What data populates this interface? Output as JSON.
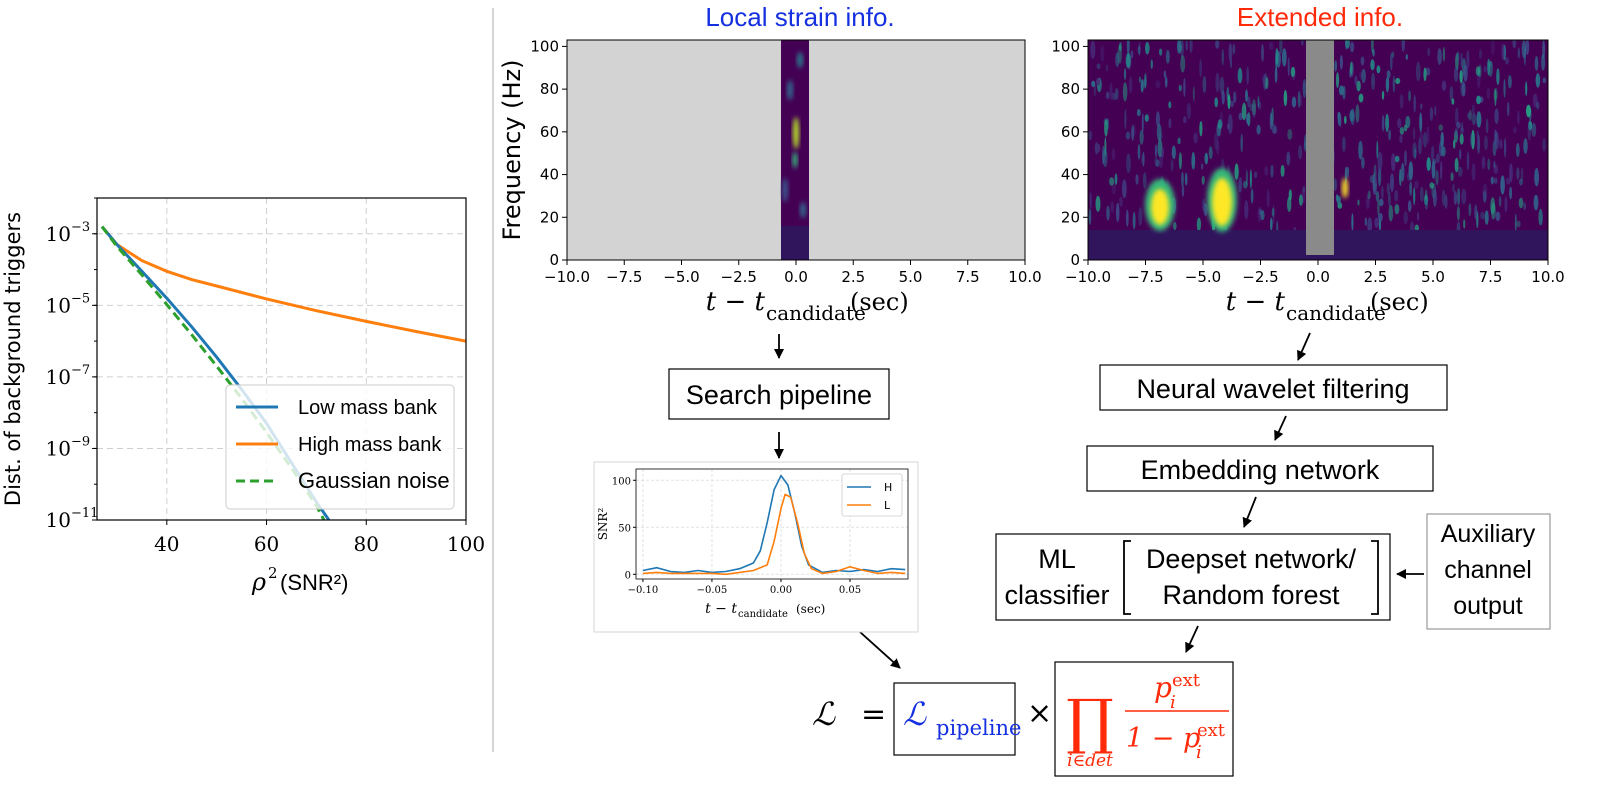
{
  "colors": {
    "low_mass": "#1f77b4",
    "high_mass": "#ff7f0e",
    "gaussian": "#2ca02c",
    "local_title": "#1530e0",
    "extended_title": "#ff2a0a",
    "red_box": "#ff2a0a",
    "blue_text": "#1530e0"
  },
  "titles": {
    "local": "Local strain info.",
    "extended": "Extended info."
  },
  "boxes": {
    "search_pipeline": "Search pipeline",
    "neural_wavelet": "Neural wavelet filtering",
    "embedding": "Embedding network",
    "ml_1": "ML",
    "ml_2": "classifier",
    "deepset": "Deepset network/",
    "random_forest": "Random forest",
    "aux_1": "Auxiliary",
    "aux_2": "channel",
    "aux_3": "output"
  },
  "formula": {
    "lhs": "ℒ",
    "equals": "=",
    "pipeline_symbol": "ℒ",
    "pipeline_sub": "pipeline",
    "times": "×",
    "prod": "∏",
    "prod_sub": "i∈det",
    "num_p": "p",
    "num_sub": "i",
    "num_sup": "ext",
    "den_prefix": "1 − p",
    "den_sub": "i",
    "den_sup": "ext"
  },
  "spec_axes": {
    "ylabel": "Frequency (Hz)",
    "xlabel_main": "t − t",
    "xlabel_sub": "candidate",
    "xlabel_unit": "(sec)",
    "xticks": [
      "−10.0",
      "−7.5",
      "−5.0",
      "−2.5",
      "0.0",
      "2.5",
      "5.0",
      "7.5",
      "10.0"
    ],
    "yticks": [
      "0",
      "20",
      "40",
      "60",
      "80",
      "100"
    ]
  },
  "chart_data": [
    {
      "type": "line",
      "xlabel": "ρ² (SNR²)",
      "ylabel": "Dist. of background triggers",
      "xlim": [
        26,
        100
      ],
      "ylim_log10": [
        -11,
        -2
      ],
      "yscale": "log",
      "grid": true,
      "legend_position": "bottom-right",
      "xticks": [
        "40",
        "60",
        "80",
        "100"
      ],
      "yticks": [
        {
          "base": "10",
          "exp": "−3",
          "log": -3
        },
        {
          "base": "10",
          "exp": "−5",
          "log": -5
        },
        {
          "base": "10",
          "exp": "−7",
          "log": -7
        },
        {
          "base": "10",
          "exp": "−9",
          "log": -9
        },
        {
          "base": "10",
          "exp": "−11",
          "log": -11
        }
      ],
      "series": [
        {
          "name": "Low mass bank",
          "style": "solid",
          "x": [
            27,
            30,
            35,
            40,
            45,
            50,
            55,
            60,
            65,
            70,
            72.5
          ],
          "log10_y": [
            -2.8,
            -3.3,
            -4.05,
            -4.8,
            -5.6,
            -6.45,
            -7.35,
            -8.3,
            -9.4,
            -10.5,
            -11
          ]
        },
        {
          "name": "High mass bank",
          "style": "solid",
          "x": [
            27,
            30,
            35,
            40,
            45,
            50,
            60,
            70,
            80,
            90,
            100
          ],
          "log10_y": [
            -2.8,
            -3.3,
            -3.75,
            -4.05,
            -4.28,
            -4.46,
            -4.82,
            -5.15,
            -5.45,
            -5.73,
            -6.0
          ]
        },
        {
          "name": "Gaussian noise",
          "style": "dashed",
          "x": [
            27,
            30,
            35,
            40,
            45,
            50,
            55,
            60,
            65,
            70,
            71.5
          ],
          "log10_y": [
            -2.8,
            -3.35,
            -4.15,
            -4.98,
            -5.82,
            -6.7,
            -7.6,
            -8.55,
            -9.55,
            -10.6,
            -11
          ]
        }
      ]
    },
    {
      "type": "line",
      "xlabel": "t − t_candidate (sec)",
      "ylabel": "SNR²",
      "xlim": [
        -0.105,
        0.092
      ],
      "ylim": [
        -5,
        112
      ],
      "grid": true,
      "legend_position": "top-right",
      "xticks": [
        "−0.10",
        "−0.05",
        "0.00",
        "0.05"
      ],
      "yticks": [
        "0",
        "50",
        "100"
      ],
      "series": [
        {
          "name": "H",
          "x": [
            -0.1,
            -0.09,
            -0.08,
            -0.07,
            -0.06,
            -0.05,
            -0.04,
            -0.03,
            -0.02,
            -0.015,
            -0.01,
            -0.005,
            0,
            0.005,
            0.01,
            0.015,
            0.02,
            0.03,
            0.04,
            0.05,
            0.06,
            0.07,
            0.08,
            0.09
          ],
          "y": [
            4,
            7,
            3,
            2,
            4,
            2,
            3,
            6,
            12,
            25,
            55,
            90,
            105,
            95,
            65,
            30,
            10,
            2,
            4,
            3,
            5,
            3,
            6,
            5
          ]
        },
        {
          "name": "L",
          "x": [
            -0.1,
            -0.09,
            -0.08,
            -0.07,
            -0.06,
            -0.05,
            -0.04,
            -0.03,
            -0.02,
            -0.01,
            -0.005,
            0,
            0.003,
            0.007,
            0.012,
            0.017,
            0.022,
            0.03,
            0.04,
            0.05,
            0.06,
            0.07,
            0.08,
            0.09
          ],
          "y": [
            1,
            2,
            1,
            1,
            1,
            1,
            0,
            2,
            4,
            10,
            35,
            70,
            85,
            82,
            55,
            22,
            6,
            1,
            3,
            8,
            4,
            1,
            2,
            1
          ]
        }
      ]
    }
  ]
}
